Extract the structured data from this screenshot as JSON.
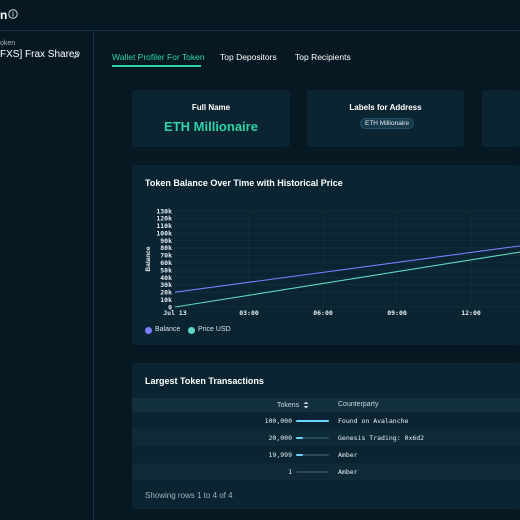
{
  "header": {
    "title": "n"
  },
  "sidebar": {
    "token_label": "oken",
    "token_name": "FXS] Frax Shares"
  },
  "tabs": [
    {
      "label": "Wallet Profiler For Token",
      "active": true
    },
    {
      "label": "Top Depositors",
      "active": false
    },
    {
      "label": "Top Recipients",
      "active": false
    }
  ],
  "stats": {
    "full_name": {
      "heading": "Full Name",
      "value": "ETH Millionaire"
    },
    "labels": {
      "heading": "Labels for Address",
      "tag": "ETH Millionaire"
    }
  },
  "balance_chart": {
    "title": "Token Balance Over Time with Historical Price",
    "legend": [
      {
        "name": "Balance",
        "color": "#7b7cff"
      },
      {
        "name": "Price USD",
        "color": "#5fd6c2"
      }
    ]
  },
  "chart_data": {
    "type": "line",
    "title": "Token Balance Over Time with Historical Price",
    "ylabel": "Balance",
    "xlabel": "",
    "x_ticks": [
      "Jul 13",
      "03:00",
      "06:00",
      "09:00",
      "12:00"
    ],
    "y_ticks": [
      "0",
      "10k",
      "20k",
      "30k",
      "40k",
      "50k",
      "60k",
      "70k",
      "80k",
      "90k",
      "100k",
      "110k",
      "120k",
      "130k"
    ],
    "ylim": [
      0,
      130000
    ],
    "grid": true,
    "series": [
      {
        "name": "Balance",
        "color": "#7b7cff",
        "x_hours": [
          0,
          15.6
        ],
        "values": [
          20000,
          90000
        ]
      },
      {
        "name": "Price USD",
        "color": "#5fd6c2",
        "x_hours": [
          0,
          15.6
        ],
        "values": [
          0,
          83000
        ]
      }
    ]
  },
  "transactions": {
    "title": "Largest Token Transactions",
    "columns": {
      "tokens": "Tokens",
      "counterparty": "Counterparty"
    },
    "rows": [
      {
        "tokens": "100,000",
        "fraction": 1.0,
        "counterparty": "Found on Avalanche"
      },
      {
        "tokens": "20,000",
        "fraction": 0.2,
        "counterparty": "Genesis Trading: 0x6d2"
      },
      {
        "tokens": "19,999",
        "fraction": 0.2,
        "counterparty": "Amber"
      },
      {
        "tokens": "1",
        "fraction": 0.0,
        "counterparty": "Amber"
      }
    ],
    "footer": "Showing rows 1 to 4 of 4"
  }
}
